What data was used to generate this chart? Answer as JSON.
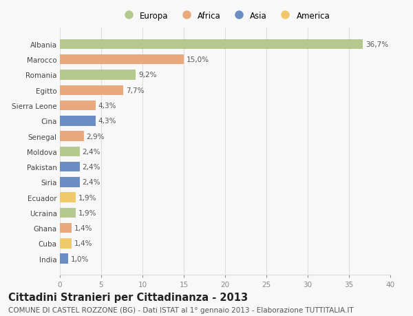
{
  "countries": [
    "Albania",
    "Marocco",
    "Romania",
    "Egitto",
    "Sierra Leone",
    "Cina",
    "Senegal",
    "Moldova",
    "Pakistan",
    "Siria",
    "Ecuador",
    "Ucraina",
    "Ghana",
    "Cuba",
    "India"
  ],
  "values": [
    36.7,
    15.0,
    9.2,
    7.7,
    4.3,
    4.3,
    2.9,
    2.4,
    2.4,
    2.4,
    1.9,
    1.9,
    1.4,
    1.4,
    1.0
  ],
  "labels": [
    "36,7%",
    "15,0%",
    "9,2%",
    "7,7%",
    "4,3%",
    "4,3%",
    "2,9%",
    "2,4%",
    "2,4%",
    "2,4%",
    "1,9%",
    "1,9%",
    "1,4%",
    "1,4%",
    "1,0%"
  ],
  "continents": [
    "Europa",
    "Africa",
    "Europa",
    "Africa",
    "Africa",
    "Asia",
    "Africa",
    "Europa",
    "Asia",
    "Asia",
    "America",
    "Europa",
    "Africa",
    "America",
    "Asia"
  ],
  "colors": {
    "Europa": "#b5c98e",
    "Africa": "#e8a97e",
    "Asia": "#6b8dc4",
    "America": "#f0c96b"
  },
  "legend_order": [
    "Europa",
    "Africa",
    "Asia",
    "America"
  ],
  "title": "Cittadini Stranieri per Cittadinanza - 2013",
  "subtitle": "COMUNE DI CASTEL ROZZONE (BG) - Dati ISTAT al 1° gennaio 2013 - Elaborazione TUTTITALIA.IT",
  "xlim": [
    0,
    40
  ],
  "xticks": [
    0,
    5,
    10,
    15,
    20,
    25,
    30,
    35,
    40
  ],
  "background_color": "#f8f8f8",
  "grid_color": "#dddddd",
  "title_fontsize": 10.5,
  "subtitle_fontsize": 7.5,
  "label_fontsize": 7.5,
  "tick_fontsize": 7.5,
  "legend_fontsize": 8.5,
  "bar_height": 0.65
}
